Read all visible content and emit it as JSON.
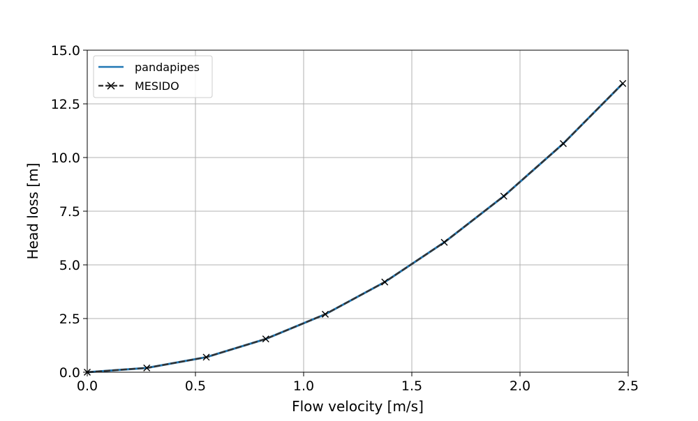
{
  "chart_data": {
    "type": "line",
    "title": "",
    "xlabel": "Flow velocity [m/s]",
    "ylabel": "Head loss [m]",
    "xlim": [
      0.0,
      2.5
    ],
    "ylim": [
      0.0,
      15.0
    ],
    "x_ticks": [
      "0.0",
      "0.5",
      "1.0",
      "1.5",
      "2.0",
      "2.5"
    ],
    "y_ticks": [
      "0.0",
      "2.5",
      "5.0",
      "7.5",
      "10.0",
      "12.5",
      "15.0"
    ],
    "grid": true,
    "legend_position": "top-left",
    "series": [
      {
        "name": "pandapipes",
        "color": "#1f77b4",
        "style": "solid",
        "marker": "none",
        "x": [
          0.0,
          0.275,
          0.55,
          0.825,
          1.1,
          1.375,
          1.65,
          1.925,
          2.2,
          2.475
        ],
        "y": [
          0.0,
          0.2,
          0.7,
          1.55,
          2.7,
          4.2,
          6.05,
          8.2,
          10.65,
          13.45
        ]
      },
      {
        "name": "MESIDO",
        "color": "#333333",
        "style": "dashed",
        "marker": "x",
        "x": [
          0.0,
          0.275,
          0.55,
          0.825,
          1.1,
          1.375,
          1.65,
          1.925,
          2.2,
          2.475
        ],
        "y": [
          0.0,
          0.2,
          0.7,
          1.55,
          2.7,
          4.2,
          6.05,
          8.2,
          10.65,
          13.45
        ]
      }
    ]
  }
}
